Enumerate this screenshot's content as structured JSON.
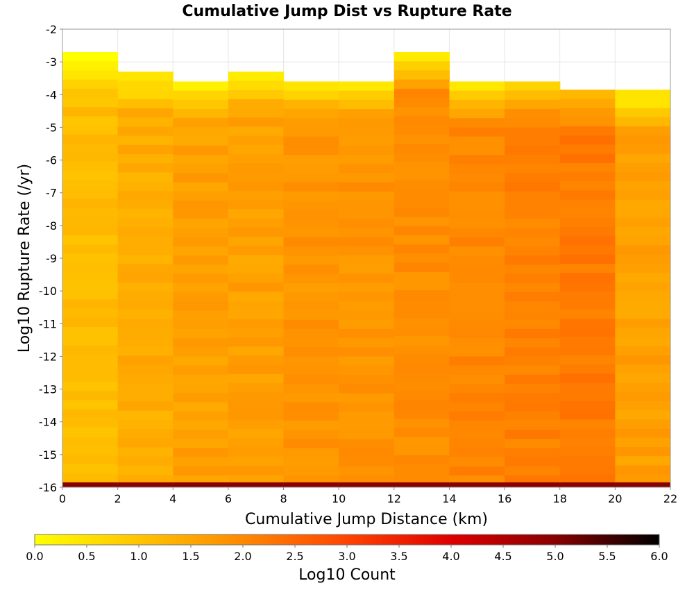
{
  "chart_data": {
    "type": "heatmap",
    "title": "Cumulative Jump Dist vs Rupture Rate",
    "xlabel": "Cumulative Jump Distance (km)",
    "ylabel": "Log10 Rupture Rate (/yr)",
    "xlim": [
      0,
      22
    ],
    "ylim": [
      -16,
      -2
    ],
    "x_ticks": [
      "0",
      "2",
      "4",
      "6",
      "8",
      "10",
      "12",
      "14",
      "16",
      "18",
      "20",
      "22"
    ],
    "y_ticks": [
      "-2",
      "-3",
      "-4",
      "-5",
      "-6",
      "-7",
      "-8",
      "-9",
      "-10",
      "-11",
      "-12",
      "-13",
      "-14",
      "-15",
      "-16"
    ],
    "x_bin_edges": [
      0,
      2,
      4,
      6,
      8,
      10,
      12,
      14,
      16,
      18,
      20,
      22
    ],
    "y_bin_width": 0.28,
    "grid": true,
    "colorbar": {
      "label": "Log10 Count",
      "range": [
        0.0,
        6.0
      ],
      "ticks": [
        "0.0",
        "0.5",
        "1.0",
        "1.5",
        "2.0",
        "2.5",
        "3.0",
        "3.5",
        "4.0",
        "4.5",
        "5.0",
        "5.5",
        "6.0"
      ],
      "colors": [
        "#ffff00",
        "#ffc400",
        "#ff8800",
        "#ff4400",
        "#dd0000",
        "#880000",
        "#000000"
      ]
    },
    "columns": [
      {
        "x_range": [
          0,
          2
        ],
        "rate_top": -2.7,
        "top_value": 0.1,
        "body_value": 1.1,
        "bottom_value": 5.0
      },
      {
        "x_range": [
          2,
          4
        ],
        "rate_top": -3.3,
        "top_value": 0.3,
        "body_value": 1.4,
        "bottom_value": 5.0
      },
      {
        "x_range": [
          4,
          6
        ],
        "rate_top": -3.6,
        "top_value": 0.4,
        "body_value": 1.6,
        "bottom_value": 5.0
      },
      {
        "x_range": [
          6,
          8
        ],
        "rate_top": -3.3,
        "top_value": 0.3,
        "body_value": 1.6,
        "bottom_value": 5.0
      },
      {
        "x_range": [
          8,
          10
        ],
        "rate_top": -3.6,
        "top_value": 0.5,
        "body_value": 1.8,
        "bottom_value": 5.0
      },
      {
        "x_range": [
          10,
          12
        ],
        "rate_top": -3.6,
        "top_value": 0.4,
        "body_value": 1.8,
        "bottom_value": 5.0
      },
      {
        "x_range": [
          12,
          14
        ],
        "rate_top": -2.7,
        "top_value": 0.3,
        "body_value": 1.9,
        "bottom_value": 5.0
      },
      {
        "x_range": [
          14,
          16
        ],
        "rate_top": -3.6,
        "top_value": 0.5,
        "body_value": 2.0,
        "bottom_value": 5.0
      },
      {
        "x_range": [
          16,
          18
        ],
        "rate_top": -3.6,
        "top_value": 0.8,
        "body_value": 2.1,
        "bottom_value": 5.0
      },
      {
        "x_range": [
          18,
          20
        ],
        "rate_top": -3.85,
        "top_value": 1.2,
        "body_value": 2.2,
        "bottom_value": 5.0
      },
      {
        "x_range": [
          20,
          22
        ],
        "rate_top": -3.85,
        "top_value": 0.3,
        "body_value": 1.6,
        "bottom_value": 5.0
      }
    ]
  }
}
